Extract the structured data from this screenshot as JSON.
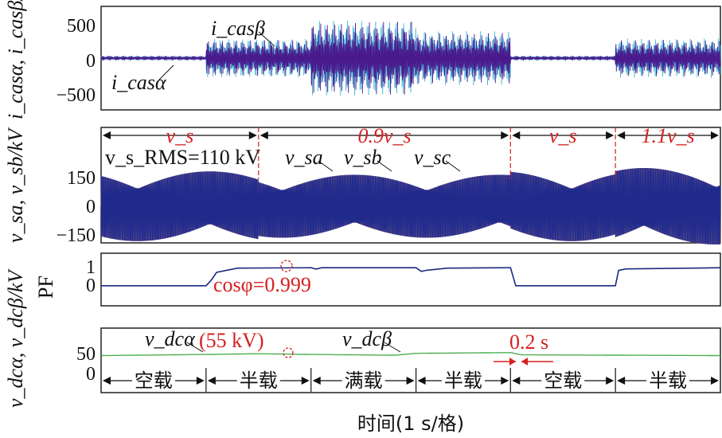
{
  "colors": {
    "ialpha": "#4a1a8c",
    "ibeta": "#38b8d8",
    "va": "#1f2a8a",
    "vb": "#3a3a9a",
    "vc": "#f0a060",
    "pf": "#1a2a80",
    "vdc": "#4caf50",
    "annot": "#d42020"
  },
  "chart_data": [
    {
      "type": "line",
      "ylabel": "i_casα, i_casβ/A",
      "ytick_labels": [
        "500",
        "0",
        "−500"
      ],
      "ylim": [
        -650,
        650
      ],
      "series_labels": {
        "beta": "i_casβ",
        "alpha": "i_casα"
      },
      "series": [
        {
          "name": "i_casα",
          "envelope": [
            [
              0,
              30
            ],
            [
              1,
              30
            ],
            [
              1,
              230
            ],
            [
              2,
              230
            ],
            [
              2,
              460
            ],
            [
              3,
              460
            ],
            [
              3,
              320
            ],
            [
              3.9,
              320
            ],
            [
              3.9,
              30
            ],
            [
              4.9,
              30
            ],
            [
              4.9,
              230
            ],
            [
              5.9,
              230
            ]
          ]
        },
        {
          "name": "i_casβ",
          "envelope": [
            [
              0,
              30
            ],
            [
              1,
              30
            ],
            [
              1,
              250
            ],
            [
              2,
              250
            ],
            [
              2,
              480
            ],
            [
              3,
              480
            ],
            [
              3,
              340
            ],
            [
              3.9,
              340
            ],
            [
              3.9,
              30
            ],
            [
              4.9,
              30
            ],
            [
              4.9,
              250
            ],
            [
              5.9,
              250
            ]
          ]
        }
      ]
    },
    {
      "type": "line",
      "ylabel": "v_sa, v_sb/kV",
      "ytick_labels": [
        "150",
        "0",
        "−150"
      ],
      "ylim": [
        -170,
        170
      ],
      "rms_label": "v_s_RMS=110 kV",
      "series_labels": [
        "v_sa",
        "v_sb",
        "v_sc"
      ],
      "amplitudes": [
        [
          0,
          1.5,
          155
        ],
        [
          1.5,
          3.9,
          140
        ],
        [
          3.9,
          4.9,
          155
        ],
        [
          4.9,
          5.9,
          170
        ]
      ],
      "segments": [
        {
          "label": "v_s",
          "start": 0,
          "end": 1.5
        },
        {
          "label": "0.9v_s",
          "start": 1.5,
          "end": 3.9
        },
        {
          "label": "v_s",
          "start": 3.9,
          "end": 4.9
        },
        {
          "label": "1.1v_s",
          "start": 4.9,
          "end": 5.9
        }
      ]
    },
    {
      "type": "line",
      "ylabel": "PF",
      "ytick_labels": [
        "1",
        "0"
      ],
      "ylim": [
        -0.3,
        1.5
      ],
      "annotation": "cosφ=0.999",
      "series": [
        {
          "name": "PF",
          "x": [
            0,
            1,
            1.05,
            1.1,
            1.3,
            2,
            2.05,
            2.1,
            3,
            3.05,
            3.1,
            3.3,
            3.9,
            3.95,
            4.9,
            4.93,
            5.0,
            5.9
          ],
          "y": [
            0.05,
            0.05,
            0.35,
            0.75,
            0.97,
            0.99,
            0.92,
            0.99,
            0.99,
            0.8,
            0.86,
            0.97,
            0.99,
            0.05,
            0.05,
            0.85,
            0.93,
            0.99
          ]
        }
      ]
    },
    {
      "type": "line",
      "ylabel": "v_dcα, v_dcβ/kV",
      "ytick_labels": [
        "50",
        "0"
      ],
      "ylim": [
        -20,
        90
      ],
      "annotations": [
        "(55 kV)",
        "0.2 s"
      ],
      "series_labels": [
        "v_dcα",
        "v_dcβ"
      ],
      "series": [
        {
          "name": "v_dc",
          "x": [
            0,
            1,
            1.5,
            2,
            2.8,
            3,
            3.9,
            4.0,
            5.9
          ],
          "y": [
            50,
            53,
            55,
            53,
            51,
            56,
            58,
            52,
            50
          ]
        }
      ],
      "load_segments": [
        {
          "label": "空载",
          "start": 0,
          "end": 1
        },
        {
          "label": "半载",
          "start": 1,
          "end": 2
        },
        {
          "label": "满载",
          "start": 2,
          "end": 3
        },
        {
          "label": "半载",
          "start": 3,
          "end": 3.9
        },
        {
          "label": "空载",
          "start": 3.9,
          "end": 4.9
        },
        {
          "label": "半载",
          "start": 4.9,
          "end": 5.9
        }
      ]
    }
  ],
  "xlabel": "时间(1 s/格)"
}
